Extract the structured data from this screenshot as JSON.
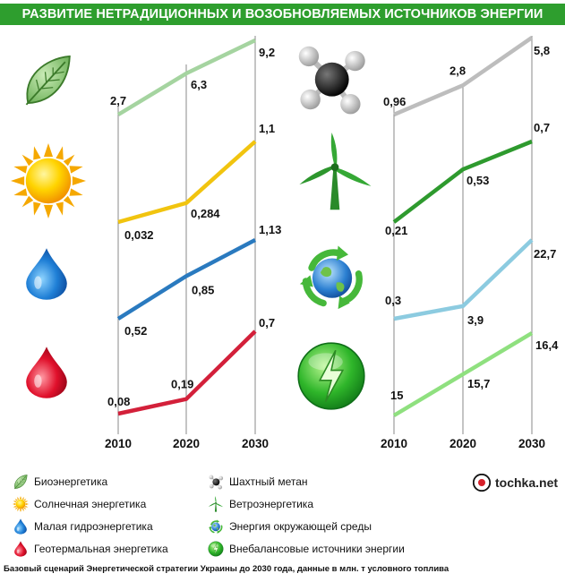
{
  "title": "РАЗВИТИЕ НЕТРАДИЦИОННЫХ И ВОЗОБНОВЛЯЕМЫХ ИСТОЧНИКОВ ЭНЕРГИИ",
  "chart_data": {
    "type": "line",
    "x": [
      "2010",
      "2020",
      "2030"
    ],
    "unit": "млн. т условного топлива",
    "series": [
      {
        "name": "Биоэнергетика",
        "column": "left",
        "values": [
          2.7,
          6.3,
          9.2
        ],
        "labels": [
          "2,7",
          "6,3",
          "9,2"
        ],
        "color": "#a5d4a0",
        "icon": "leaf-icon"
      },
      {
        "name": "Солнечная энергетика",
        "column": "left",
        "values": [
          0.032,
          0.284,
          1.1
        ],
        "labels": [
          "0,032",
          "0,284",
          "1,1"
        ],
        "color": "#f1c40f",
        "icon": "sun-icon"
      },
      {
        "name": "Малая гидроэнергетика",
        "column": "left",
        "values": [
          0.52,
          0.85,
          1.13
        ],
        "labels": [
          "0,52",
          "0,85",
          "1,13"
        ],
        "color": "#2a7abf",
        "icon": "blue-drop-icon"
      },
      {
        "name": "Геотермальная энергетика",
        "column": "left",
        "values": [
          0.08,
          0.19,
          0.7
        ],
        "labels": [
          "0,08",
          "0,19",
          "0,7"
        ],
        "color": "#d3203a",
        "icon": "red-drop-icon"
      },
      {
        "name": "Шахтный метан",
        "column": "right",
        "values": [
          0.96,
          2.8,
          5.8
        ],
        "labels": [
          "0,96",
          "2,8",
          "5,8"
        ],
        "color": "#bdbdbd",
        "icon": "methane-molecule-icon"
      },
      {
        "name": "Ветроэнергетика",
        "column": "right",
        "values": [
          0.21,
          0.53,
          0.7
        ],
        "labels": [
          "0,21",
          "0,53",
          "0,7"
        ],
        "color": "#2e9a2e",
        "icon": "wind-turbine-icon"
      },
      {
        "name": "Энергия окружающей среды",
        "column": "right",
        "values": [
          0.3,
          3.9,
          22.7
        ],
        "labels": [
          "0,3",
          "3,9",
          "22,7"
        ],
        "color": "#8ccbe0",
        "icon": "recycle-globe-icon"
      },
      {
        "name": "Внебалансовые источники энергии",
        "column": "right",
        "values": [
          15,
          15.7,
          16.4
        ],
        "labels": [
          "15",
          "15,7",
          "16,4"
        ],
        "color": "#8fe07f",
        "icon": "lightning-orb-icon"
      }
    ]
  },
  "logo_text": "tochka.net",
  "footnote": "Базовый сценарий Энергетической стратегии Украины до 2030 года, данные в млн. т условного топлива",
  "colors": {
    "title_bg": "#2e9e2e",
    "grid": "#888888"
  }
}
